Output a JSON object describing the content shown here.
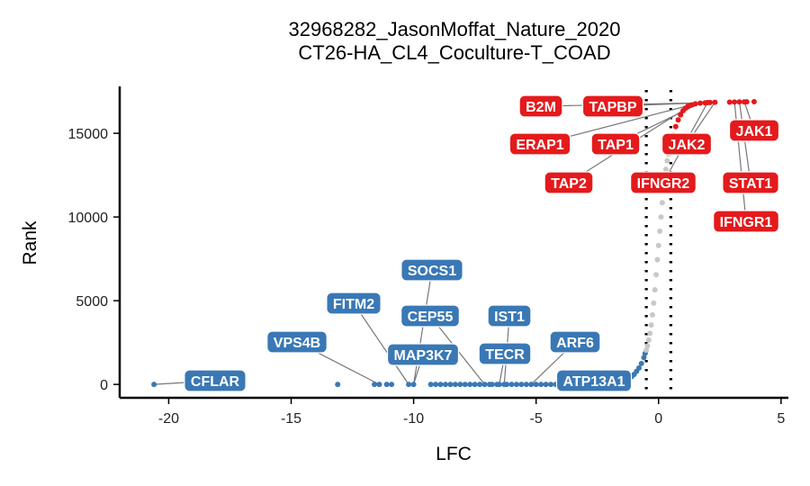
{
  "chart_data": {
    "type": "scatter",
    "title": "32968282_JasonMoffat_Nature_2020",
    "subtitle": "CT26-HA_CL4_Coculture-T_COAD",
    "xlabel": "LFC",
    "ylabel": "Rank",
    "xlim": [
      -22,
      5.3
    ],
    "ylim": [
      -800,
      17800
    ],
    "x_ticks": [
      -20,
      -15,
      -10,
      -5,
      0,
      5
    ],
    "y_ticks": [
      0,
      5000,
      10000,
      15000
    ],
    "thresholds": [
      -0.5,
      0.5
    ],
    "grid": false,
    "colors": {
      "negative": "#3a78b5",
      "positive": "#e41a1c",
      "neutral": "#c8c8c8",
      "connector": "#777777"
    },
    "series": [
      {
        "role": "negative",
        "points": [
          [
            -20.6,
            0
          ],
          [
            -13.1,
            0
          ],
          [
            -11.6,
            0
          ],
          [
            -11.4,
            0
          ],
          [
            -11.1,
            0
          ],
          [
            -10.9,
            0
          ],
          [
            -10.2,
            0
          ],
          [
            -10.0,
            0
          ],
          [
            -9.3,
            0
          ],
          [
            -9.1,
            0
          ],
          [
            -8.9,
            0
          ],
          [
            -8.7,
            0
          ],
          [
            -8.5,
            0
          ],
          [
            -8.3,
            0
          ],
          [
            -8.1,
            0
          ],
          [
            -7.9,
            0
          ],
          [
            -7.7,
            0
          ],
          [
            -7.5,
            0
          ],
          [
            -7.3,
            0
          ],
          [
            -7.1,
            0
          ],
          [
            -6.9,
            0
          ],
          [
            -6.8,
            0
          ],
          [
            -6.6,
            0
          ],
          [
            -6.5,
            0
          ],
          [
            -6.3,
            0
          ],
          [
            -6.2,
            0
          ],
          [
            -6.0,
            0
          ],
          [
            -5.8,
            0
          ],
          [
            -5.6,
            0
          ],
          [
            -5.4,
            0
          ],
          [
            -5.2,
            0
          ],
          [
            -5.0,
            0
          ],
          [
            -4.8,
            0
          ],
          [
            -4.6,
            0
          ],
          [
            -4.4,
            0
          ],
          [
            -4.2,
            0
          ],
          [
            -4.0,
            0
          ],
          [
            -3.8,
            0
          ],
          [
            -3.6,
            0
          ],
          [
            -3.4,
            0
          ],
          [
            -3.2,
            0
          ],
          [
            -3.0,
            0
          ],
          [
            -2.8,
            0
          ],
          [
            -2.6,
            0
          ],
          [
            -2.4,
            0
          ],
          [
            -2.2,
            0
          ],
          [
            -2.0,
            30
          ],
          [
            -1.8,
            60
          ],
          [
            -1.6,
            100
          ],
          [
            -1.4,
            170
          ],
          [
            -1.3,
            250
          ],
          [
            -1.2,
            340
          ],
          [
            -1.1,
            460
          ],
          [
            -1.0,
            600
          ],
          [
            -0.9,
            780
          ],
          [
            -0.8,
            980
          ],
          [
            -0.7,
            1250
          ],
          [
            -0.6,
            1600
          ],
          [
            -0.55,
            1850
          ]
        ]
      },
      {
        "role": "neutral",
        "points": [
          [
            -0.5,
            2050
          ],
          [
            -0.45,
            2300
          ],
          [
            -0.4,
            2650
          ],
          [
            -0.35,
            3050
          ],
          [
            -0.3,
            3550
          ],
          [
            -0.25,
            4150
          ],
          [
            -0.2,
            4850
          ],
          [
            -0.15,
            5650
          ],
          [
            -0.1,
            6550
          ],
          [
            -0.05,
            7450
          ],
          [
            0.0,
            8300
          ],
          [
            0.05,
            9150
          ],
          [
            0.1,
            10000
          ],
          [
            0.15,
            10850
          ],
          [
            0.2,
            11650
          ],
          [
            0.25,
            12300
          ],
          [
            0.3,
            12850
          ],
          [
            0.35,
            13350
          ],
          [
            0.4,
            13750
          ],
          [
            0.45,
            14050
          ]
        ]
      },
      {
        "role": "positive",
        "points": [
          [
            0.5,
            14300
          ],
          [
            0.6,
            14900
          ],
          [
            0.7,
            15400
          ],
          [
            0.8,
            15800
          ],
          [
            0.9,
            16100
          ],
          [
            1.0,
            16350
          ],
          [
            1.1,
            16500
          ],
          [
            1.2,
            16620
          ],
          [
            1.35,
            16700
          ],
          [
            1.5,
            16760
          ],
          [
            1.7,
            16800
          ],
          [
            1.9,
            16820
          ],
          [
            2.0,
            16830
          ],
          [
            2.1,
            16840
          ],
          [
            2.3,
            16850
          ],
          [
            2.9,
            16860
          ],
          [
            3.1,
            16865
          ],
          [
            3.3,
            16870
          ],
          [
            3.5,
            16875
          ],
          [
            3.6,
            16880
          ],
          [
            3.9,
            16885
          ]
        ]
      }
    ],
    "labeled_points": [
      {
        "label": "CFLAR",
        "group": "negative",
        "x": -20.6,
        "y": 0
      },
      {
        "label": "VPS4B",
        "group": "negative",
        "x": -11.4,
        "y": 0
      },
      {
        "label": "FITM2",
        "group": "negative",
        "x": -10.2,
        "y": 0
      },
      {
        "label": "SOCS1",
        "group": "negative",
        "x": -10.0,
        "y": 0
      },
      {
        "label": "MAP3K7",
        "group": "negative",
        "x": -10.0,
        "y": 0
      },
      {
        "label": "CEP55",
        "group": "negative",
        "x": -7.1,
        "y": 0
      },
      {
        "label": "TECR",
        "group": "negative",
        "x": -6.5,
        "y": 0
      },
      {
        "label": "IST1",
        "group": "negative",
        "x": -6.3,
        "y": 0
      },
      {
        "label": "ARF6",
        "group": "negative",
        "x": -5.2,
        "y": 0
      },
      {
        "label": "ATP13A1",
        "group": "negative",
        "x": -1.4,
        "y": 170
      },
      {
        "label": "B2M",
        "group": "positive",
        "x": 1.9,
        "y": 16820
      },
      {
        "label": "TAPBP",
        "group": "positive",
        "x": 2.1,
        "y": 16840
      },
      {
        "label": "ERAP1",
        "group": "positive",
        "x": 1.5,
        "y": 16760
      },
      {
        "label": "TAP1",
        "group": "positive",
        "x": 1.7,
        "y": 16800
      },
      {
        "label": "TAP2",
        "group": "positive",
        "x": 1.35,
        "y": 16700
      },
      {
        "label": "JAK2",
        "group": "positive",
        "x": 2.3,
        "y": 16850
      },
      {
        "label": "IFNGR2",
        "group": "positive",
        "x": 2.0,
        "y": 16830
      },
      {
        "label": "JAK1",
        "group": "positive",
        "x": 3.5,
        "y": 16875
      },
      {
        "label": "STAT1",
        "group": "positive",
        "x": 3.3,
        "y": 16870
      },
      {
        "label": "IFNGR1",
        "group": "positive",
        "x": 3.1,
        "y": 16865
      }
    ]
  }
}
